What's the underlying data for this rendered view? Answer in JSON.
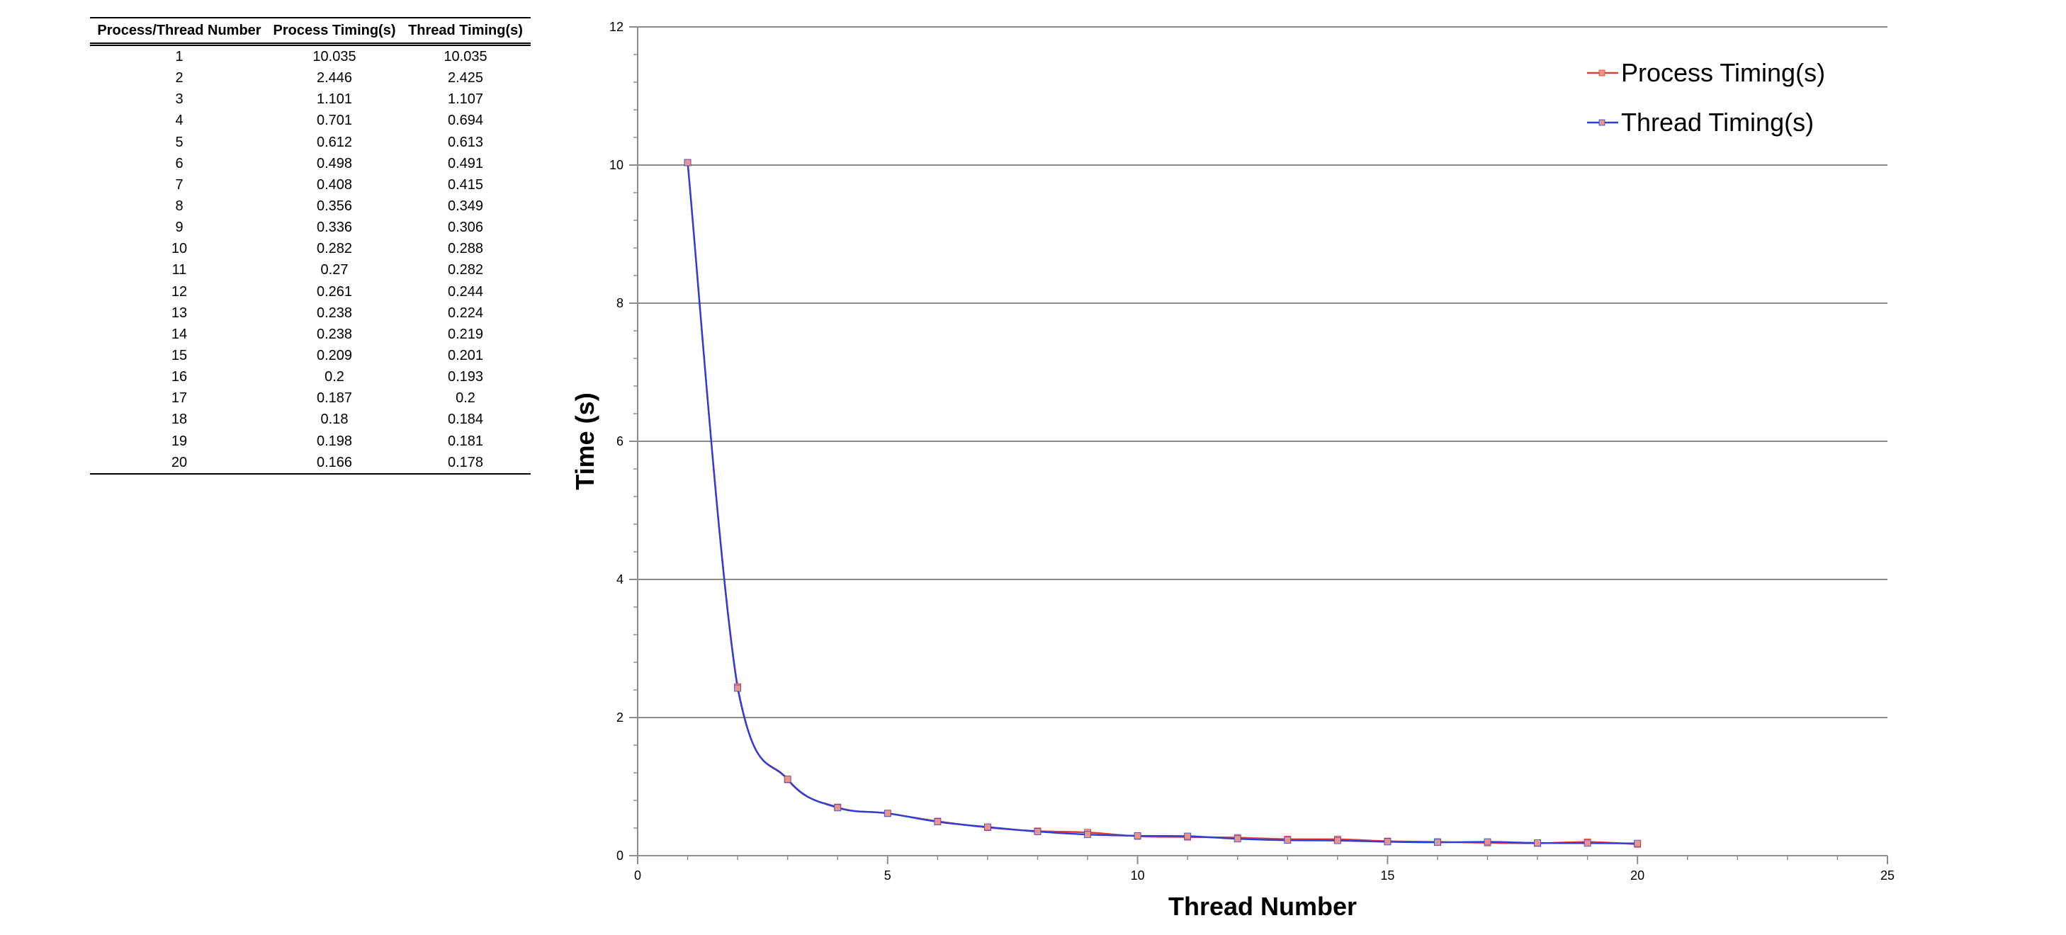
{
  "table": {
    "headers": [
      "Process/Thread Number",
      "Process Timing(s)",
      "Thread Timing(s)"
    ],
    "rows": [
      [
        "1",
        "10.035",
        "10.035"
      ],
      [
        "2",
        "2.446",
        "2.425"
      ],
      [
        "3",
        "1.101",
        "1.107"
      ],
      [
        "4",
        "0.701",
        "0.694"
      ],
      [
        "5",
        "0.612",
        "0.613"
      ],
      [
        "6",
        "0.498",
        "0.491"
      ],
      [
        "7",
        "0.408",
        "0.415"
      ],
      [
        "8",
        "0.356",
        "0.349"
      ],
      [
        "9",
        "0.336",
        "0.306"
      ],
      [
        "10",
        "0.282",
        "0.288"
      ],
      [
        "11",
        "0.27",
        "0.282"
      ],
      [
        "12",
        "0.261",
        "0.244"
      ],
      [
        "13",
        "0.238",
        "0.224"
      ],
      [
        "14",
        "0.238",
        "0.219"
      ],
      [
        "15",
        "0.209",
        "0.201"
      ],
      [
        "16",
        "0.2",
        "0.193"
      ],
      [
        "17",
        "0.187",
        "0.2"
      ],
      [
        "18",
        "0.18",
        "0.184"
      ],
      [
        "19",
        "0.198",
        "0.181"
      ],
      [
        "20",
        "0.166",
        "0.178"
      ]
    ]
  },
  "chart_data": {
    "type": "line",
    "title": "",
    "xlabel": "Thread Number",
    "ylabel": "Time (s)",
    "xlim": [
      0,
      25
    ],
    "ylim": [
      0,
      12
    ],
    "xticks": [
      0,
      5,
      10,
      15,
      20,
      25
    ],
    "yticks": [
      0,
      2,
      4,
      6,
      8,
      10,
      12
    ],
    "grid": "horizontal major gridlines",
    "legend_position": "top-right",
    "x": [
      1,
      2,
      3,
      4,
      5,
      6,
      7,
      8,
      9,
      10,
      11,
      12,
      13,
      14,
      15,
      16,
      17,
      18,
      19,
      20
    ],
    "series": [
      {
        "name": "Process Timing(s)",
        "color": "#e8392d",
        "marker_color": "#e9958c",
        "values": [
          10.035,
          2.446,
          1.101,
          0.701,
          0.612,
          0.498,
          0.408,
          0.356,
          0.336,
          0.282,
          0.27,
          0.261,
          0.238,
          0.238,
          0.209,
          0.2,
          0.187,
          0.18,
          0.198,
          0.166
        ]
      },
      {
        "name": "Thread Timing(s)",
        "color": "#2b3fd6",
        "marker_color": "#e9958c",
        "values": [
          10.035,
          2.425,
          1.107,
          0.694,
          0.613,
          0.491,
          0.415,
          0.349,
          0.306,
          0.288,
          0.282,
          0.244,
          0.224,
          0.219,
          0.201,
          0.193,
          0.2,
          0.184,
          0.181,
          0.178
        ]
      }
    ]
  }
}
